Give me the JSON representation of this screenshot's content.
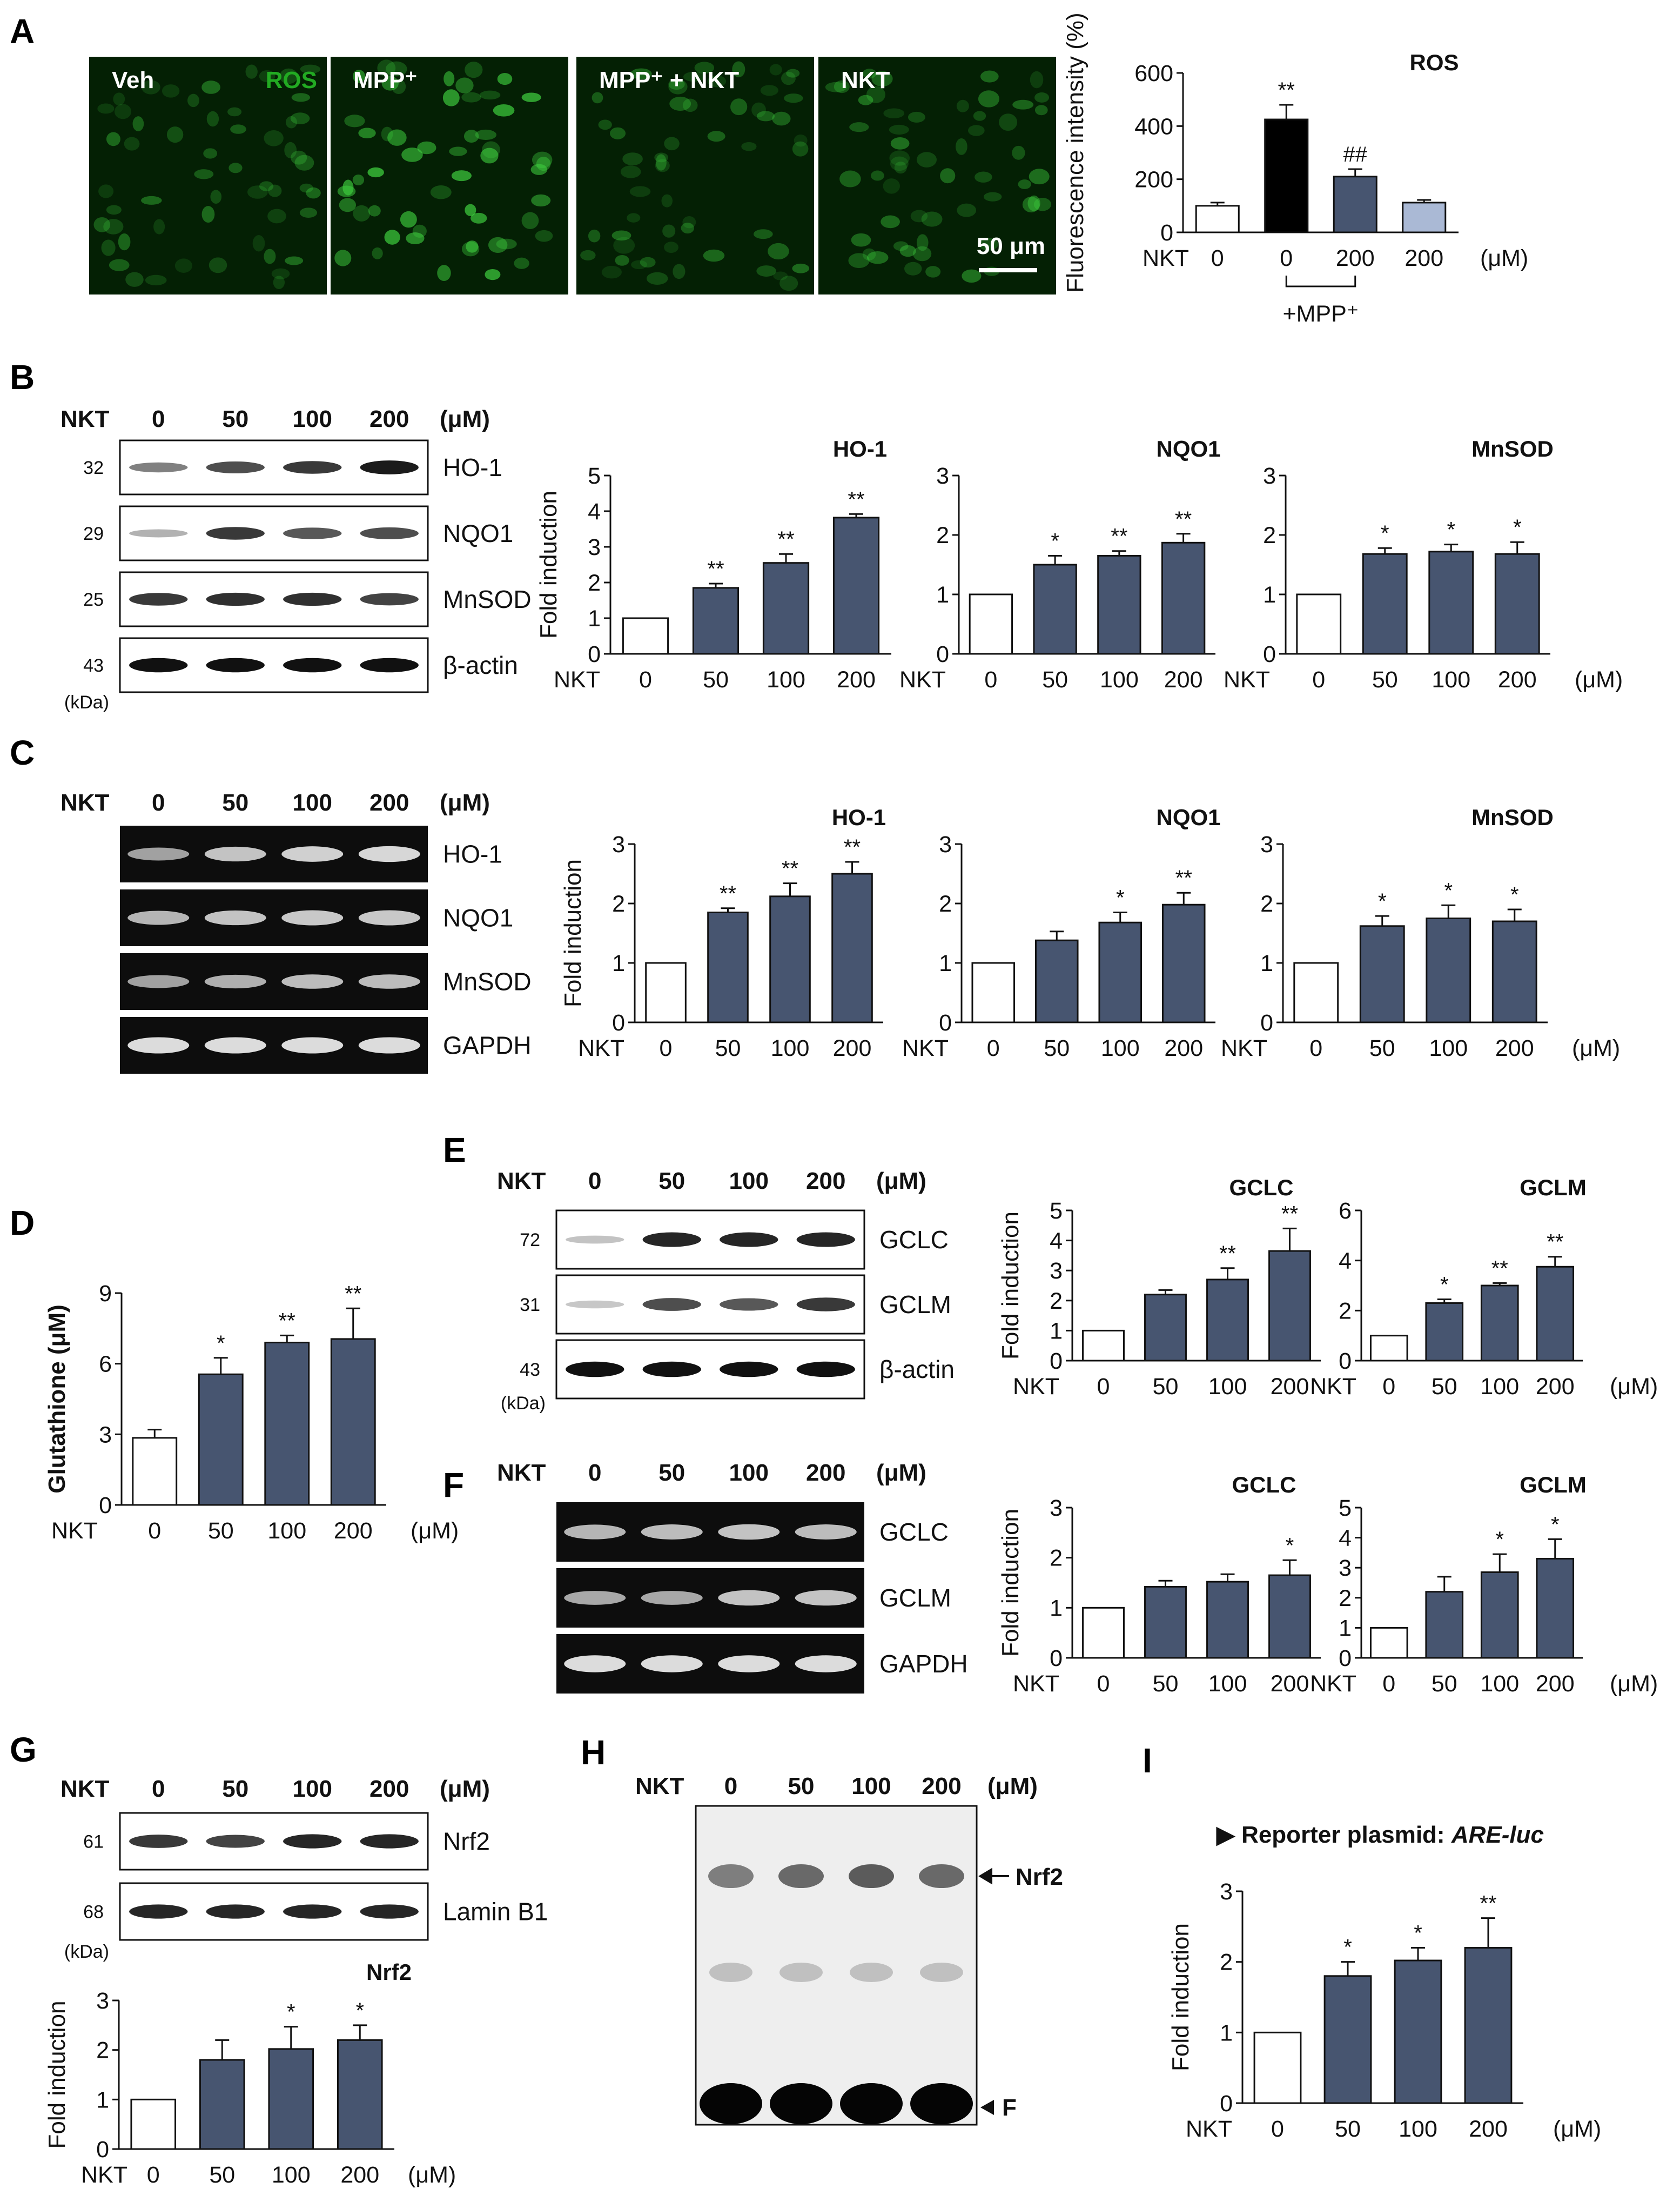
{
  "colors": {
    "bar_dark": "#475570",
    "bar_black": "#000000",
    "bar_light": "#aab9d5",
    "bar_white": "#ffffff",
    "fluor": "#22aa22"
  },
  "panels": {
    "A": {
      "letter": "A",
      "images": [
        {
          "label": "Veh",
          "extra": "ROS"
        },
        {
          "label": "MPP⁺"
        },
        {
          "label": "MPP⁺ + NKT"
        },
        {
          "label": "NKT"
        }
      ],
      "scale_bar": "50 μm",
      "chart": {
        "type": "bar",
        "title": "ROS",
        "ylabel": "Fluorescence intensity (%)",
        "ylim": [
          0,
          600
        ],
        "yticks": [
          "0",
          "200",
          "400",
          "600"
        ],
        "xprefix": "NKT",
        "categories": [
          "0",
          "0",
          "200",
          "200"
        ],
        "unit": "(μM)",
        "group_label": "+MPP⁺",
        "values": [
          100,
          425,
          210,
          112
        ],
        "errors": [
          12,
          55,
          28,
          10
        ],
        "sig": [
          "",
          "**",
          "##",
          ""
        ],
        "fills": [
          "#ffffff",
          "#000000",
          "#475570",
          "#aab9d5"
        ]
      }
    },
    "B": {
      "letter": "B",
      "blot": {
        "header": "NKT",
        "lanes": [
          "0",
          "50",
          "100",
          "200"
        ],
        "unit": "(μM)",
        "rows": [
          {
            "kda": "32",
            "name": "HO-1"
          },
          {
            "kda": "29",
            "name": "NQO1"
          },
          {
            "kda": "25",
            "name": "MnSOD"
          },
          {
            "kda": "43",
            "name": "β-actin"
          }
        ],
        "kda_label": "(kDa)"
      },
      "charts": [
        {
          "type": "bar",
          "title": "HO-1",
          "ylabel": "Fold induction",
          "ylim": [
            0,
            5
          ],
          "yticks": [
            "0",
            "1",
            "2",
            "3",
            "4",
            "5"
          ],
          "xprefix": "NKT",
          "categories": [
            "0",
            "50",
            "100",
            "200"
          ],
          "values": [
            1,
            1.85,
            2.55,
            3.82
          ],
          "errors": [
            0,
            0.12,
            0.25,
            0.1
          ],
          "sig": [
            "",
            "**",
            "**",
            "**"
          ]
        },
        {
          "type": "bar",
          "title": "NQO1",
          "ylim": [
            0,
            3
          ],
          "yticks": [
            "0",
            "1",
            "2",
            "3"
          ],
          "xprefix": "NKT",
          "categories": [
            "0",
            "50",
            "100",
            "200"
          ],
          "values": [
            1,
            1.5,
            1.65,
            1.87
          ],
          "errors": [
            0,
            0.15,
            0.08,
            0.15
          ],
          "sig": [
            "",
            "*",
            "**",
            "**"
          ]
        },
        {
          "type": "bar",
          "title": "MnSOD",
          "ylim": [
            0,
            3
          ],
          "yticks": [
            "0",
            "1",
            "2",
            "3"
          ],
          "xprefix": "NKT",
          "categories": [
            "0",
            "50",
            "100",
            "200"
          ],
          "unit": "(μM)",
          "values": [
            1,
            1.68,
            1.72,
            1.68
          ],
          "errors": [
            0,
            0.1,
            0.12,
            0.2
          ],
          "sig": [
            "",
            "*",
            "*",
            "*"
          ]
        }
      ]
    },
    "C": {
      "letter": "C",
      "gel": {
        "header": "NKT",
        "lanes": [
          "0",
          "50",
          "100",
          "200"
        ],
        "unit": "(μM)",
        "rows": [
          {
            "name": "HO-1"
          },
          {
            "name": "NQO1"
          },
          {
            "name": "MnSOD"
          },
          {
            "name": "GAPDH"
          }
        ]
      },
      "charts": [
        {
          "type": "bar",
          "title": "HO-1",
          "ylabel": "Fold induction",
          "ylim": [
            0,
            3
          ],
          "yticks": [
            "0",
            "1",
            "2",
            "3"
          ],
          "xprefix": "NKT",
          "categories": [
            "0",
            "50",
            "100",
            "200"
          ],
          "values": [
            1,
            1.85,
            2.12,
            2.5
          ],
          "errors": [
            0,
            0.07,
            0.22,
            0.2
          ],
          "sig": [
            "",
            "**",
            "**",
            "**"
          ]
        },
        {
          "type": "bar",
          "title": "NQO1",
          "ylim": [
            0,
            3
          ],
          "yticks": [
            "0",
            "1",
            "2",
            "3"
          ],
          "xprefix": "NKT",
          "categories": [
            "0",
            "50",
            "100",
            "200"
          ],
          "values": [
            1,
            1.38,
            1.68,
            1.98
          ],
          "errors": [
            0,
            0.15,
            0.17,
            0.2
          ],
          "sig": [
            "",
            "",
            "*",
            "**"
          ]
        },
        {
          "type": "bar",
          "title": "MnSOD",
          "ylim": [
            0,
            3
          ],
          "yticks": [
            "0",
            "1",
            "2",
            "3"
          ],
          "xprefix": "NKT",
          "categories": [
            "0",
            "50",
            "100",
            "200"
          ],
          "unit": "(μM)",
          "values": [
            1,
            1.62,
            1.75,
            1.7
          ],
          "errors": [
            0,
            0.17,
            0.22,
            0.2
          ],
          "sig": [
            "",
            "*",
            "*",
            "*"
          ]
        }
      ]
    },
    "D": {
      "letter": "D",
      "chart": {
        "type": "bar",
        "ylabel": "Glutathione (μM)",
        "ylim": [
          0,
          9
        ],
        "yticks": [
          "0",
          "3",
          "6",
          "9"
        ],
        "xprefix": "NKT",
        "categories": [
          "0",
          "50",
          "100",
          "200"
        ],
        "unit": "(μM)",
        "values": [
          2.85,
          5.55,
          6.9,
          7.05
        ],
        "errors": [
          0.35,
          0.7,
          0.3,
          1.3
        ],
        "sig": [
          "",
          "*",
          "**",
          "**"
        ]
      }
    },
    "E": {
      "letter": "E",
      "blot": {
        "header": "NKT",
        "lanes": [
          "0",
          "50",
          "100",
          "200"
        ],
        "unit": "(μM)",
        "rows": [
          {
            "kda": "72",
            "name": "GCLC"
          },
          {
            "kda": "31",
            "name": "GCLM"
          },
          {
            "kda": "43",
            "name": "β-actin"
          }
        ],
        "kda_label": "(kDa)"
      },
      "charts": [
        {
          "type": "bar",
          "title": "GCLC",
          "ylabel": "Fold induction",
          "ylim": [
            0,
            5
          ],
          "yticks": [
            "0",
            "1",
            "2",
            "3",
            "4",
            "5"
          ],
          "xprefix": "NKT",
          "categories": [
            "0",
            "50",
            "100",
            "200"
          ],
          "values": [
            1,
            2.2,
            2.7,
            3.65
          ],
          "errors": [
            0,
            0.15,
            0.38,
            0.75
          ],
          "sig": [
            "",
            "",
            "**",
            "**"
          ]
        },
        {
          "type": "bar",
          "title": "GCLM",
          "ylim": [
            0,
            6
          ],
          "yticks": [
            "0",
            "2",
            "4",
            "6"
          ],
          "xprefix": "NKT",
          "categories": [
            "0",
            "50",
            "100",
            "200"
          ],
          "unit": "(μM)",
          "values": [
            1,
            2.3,
            3,
            3.75
          ],
          "errors": [
            0,
            0.15,
            0.1,
            0.4
          ],
          "sig": [
            "",
            "*",
            "**",
            "**"
          ]
        }
      ]
    },
    "F": {
      "letter": "F",
      "gel": {
        "header": "NKT",
        "lanes": [
          "0",
          "50",
          "100",
          "200"
        ],
        "unit": "(μM)",
        "rows": [
          {
            "name": "GCLC"
          },
          {
            "name": "GCLM"
          },
          {
            "name": "GAPDH"
          }
        ]
      },
      "charts": [
        {
          "type": "bar",
          "title": "GCLC",
          "ylabel": "Fold induction",
          "ylim": [
            0,
            3
          ],
          "yticks": [
            "0",
            "1",
            "2",
            "3"
          ],
          "xprefix": "NKT",
          "categories": [
            "0",
            "50",
            "100",
            "200"
          ],
          "values": [
            1,
            1.42,
            1.52,
            1.65
          ],
          "errors": [
            0,
            0.12,
            0.15,
            0.3
          ],
          "sig": [
            "",
            "",
            "",
            "*"
          ]
        },
        {
          "type": "bar",
          "title": "GCLM",
          "ylim": [
            0,
            5
          ],
          "yticks": [
            "0",
            "1",
            "2",
            "3",
            "4",
            "5"
          ],
          "xprefix": "NKT",
          "categories": [
            "0",
            "50",
            "100",
            "200"
          ],
          "unit": "(μM)",
          "values": [
            1,
            2.2,
            2.85,
            3.3
          ],
          "errors": [
            0,
            0.5,
            0.6,
            0.65
          ],
          "sig": [
            "",
            "",
            "*",
            "*"
          ]
        }
      ]
    },
    "G": {
      "letter": "G",
      "blot": {
        "header": "NKT",
        "lanes": [
          "0",
          "50",
          "100",
          "200"
        ],
        "unit": "(μM)",
        "rows": [
          {
            "kda": "61",
            "name": "Nrf2"
          },
          {
            "kda": "68",
            "name": "Lamin B1"
          }
        ],
        "kda_label": "(kDa)"
      },
      "chart": {
        "type": "bar",
        "title": "Nrf2",
        "ylabel": "Fold induction",
        "ylim": [
          0,
          3
        ],
        "yticks": [
          "0",
          "1",
          "2",
          "3"
        ],
        "xprefix": "NKT",
        "categories": [
          "0",
          "50",
          "100",
          "200"
        ],
        "unit": "(μM)",
        "values": [
          1,
          1.8,
          2.02,
          2.2
        ],
        "errors": [
          0,
          0.4,
          0.45,
          0.3
        ],
        "sig": [
          "",
          "",
          "*",
          "*"
        ]
      }
    },
    "H": {
      "letter": "H",
      "header": "NKT",
      "lanes": [
        "0",
        "50",
        "100",
        "200"
      ],
      "unit": "(μM)",
      "arrow_top": "Nrf2",
      "arrow_bottom": "F"
    },
    "I": {
      "letter": "I",
      "note_prefix": "▶ Reporter plasmid: ",
      "note_italic": "ARE-luc",
      "chart": {
        "type": "bar",
        "ylabel": "Fold induction",
        "ylim": [
          0,
          3
        ],
        "yticks": [
          "0",
          "1",
          "2",
          "3"
        ],
        "xprefix": "NKT",
        "categories": [
          "0",
          "50",
          "100",
          "200"
        ],
        "unit": "(μM)",
        "values": [
          1,
          1.8,
          2.02,
          2.2
        ],
        "errors": [
          0,
          0.2,
          0.18,
          0.42
        ],
        "sig": [
          "",
          "*",
          "*",
          "**"
        ]
      }
    }
  }
}
